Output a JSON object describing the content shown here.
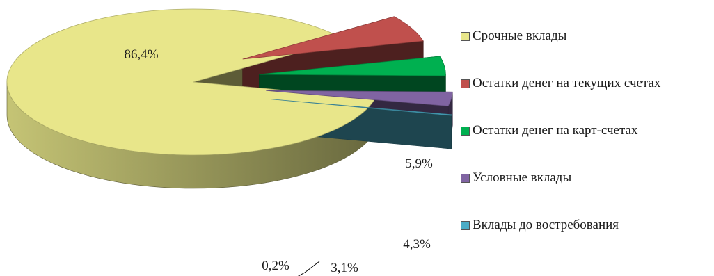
{
  "chart_data": {
    "type": "pie",
    "title": "",
    "legend_position": "right",
    "slices": [
      {
        "label": "Срочные вклады",
        "value": 86.4,
        "value_label": "86,4%",
        "color": "#e8e68a"
      },
      {
        "label": "Остатки денег на текущих счетах",
        "value": 5.9,
        "value_label": "5,9%",
        "color": "#c0504d"
      },
      {
        "label": "Остатки денег на карт-счетах",
        "value": 4.3,
        "value_label": "4,3%",
        "color": "#00b050"
      },
      {
        "label": "Условные вклады",
        "value": 3.1,
        "value_label": "3,1%",
        "color": "#8064a2"
      },
      {
        "label": "Вклады до востребования",
        "value": 0.2,
        "value_label": "0,2%",
        "color": "#4bacc6"
      }
    ]
  }
}
